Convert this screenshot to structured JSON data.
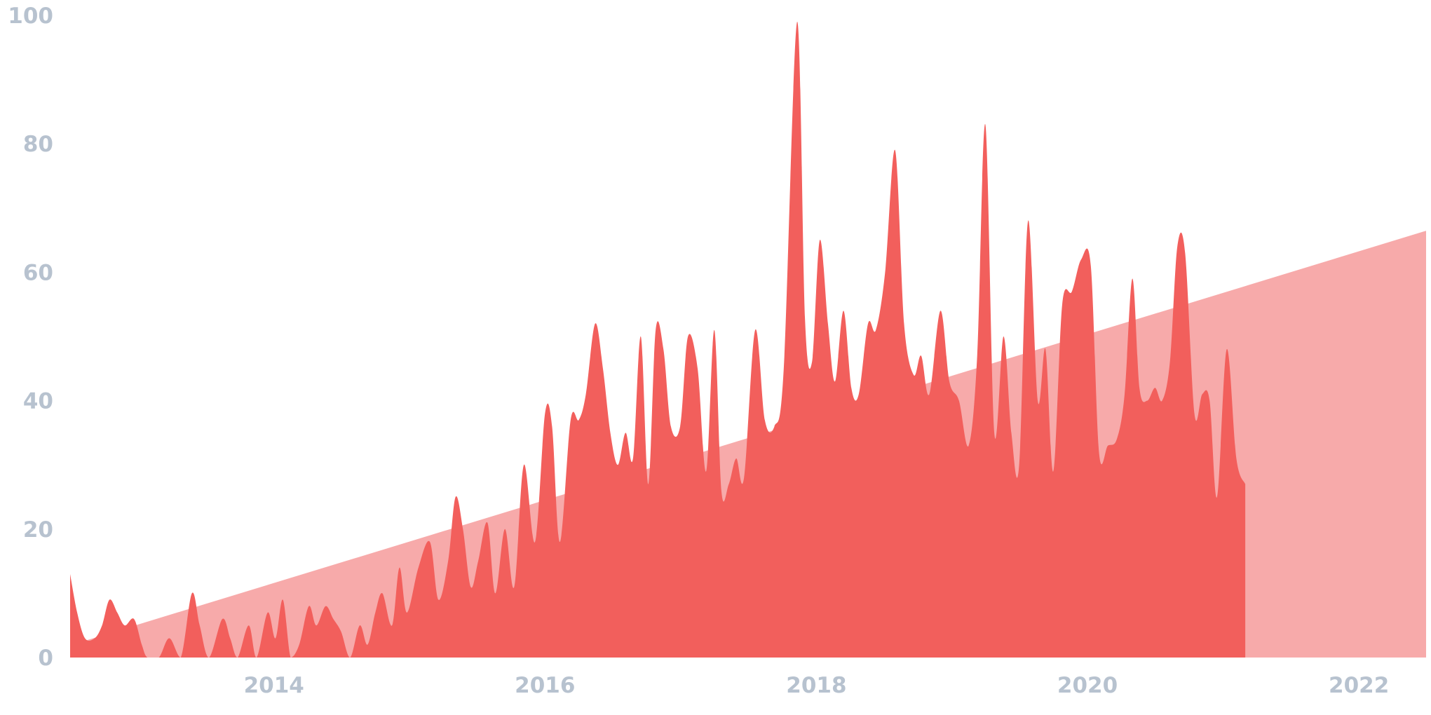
{
  "chart_data": {
    "type": "area",
    "title": "",
    "xlabel": "",
    "ylabel": "",
    "xlim": [
      "2012-07-01",
      "2022-07-01"
    ],
    "ylim": [
      0,
      100
    ],
    "grid": false,
    "legend": "none",
    "y_ticks": [
      "0",
      "20",
      "40",
      "60",
      "80",
      "100"
    ],
    "y_tick_values": [
      0,
      20,
      40,
      60,
      80,
      100
    ],
    "x_ticks": [
      "2014",
      "2016",
      "2018",
      "2020",
      "2022"
    ],
    "x_tick_dates": [
      "2014-01-01",
      "2016-01-01",
      "2018-01-01",
      "2020-01-01",
      "2022-01-01"
    ],
    "colors": {
      "main": "#f25f5c",
      "trend": "#f7aaaa",
      "tick_text": "#b7c2cf"
    },
    "series": [
      {
        "role": "interest",
        "points": [
          {
            "x": "2012-07-01",
            "y": 13
          },
          {
            "x": "2012-07-20",
            "y": 7
          },
          {
            "x": "2012-08-10",
            "y": 3
          },
          {
            "x": "2012-09-05",
            "y": 3
          },
          {
            "x": "2012-09-25",
            "y": 5
          },
          {
            "x": "2012-10-15",
            "y": 9
          },
          {
            "x": "2012-11-05",
            "y": 7
          },
          {
            "x": "2012-11-25",
            "y": 5
          },
          {
            "x": "2012-12-20",
            "y": 6
          },
          {
            "x": "2013-01-10",
            "y": 2
          },
          {
            "x": "2013-01-25",
            "y": 0
          },
          {
            "x": "2013-02-25",
            "y": 0
          },
          {
            "x": "2013-03-25",
            "y": 3
          },
          {
            "x": "2013-04-25",
            "y": 0
          },
          {
            "x": "2013-05-25",
            "y": 10
          },
          {
            "x": "2013-06-15",
            "y": 5
          },
          {
            "x": "2013-07-10",
            "y": 0
          },
          {
            "x": "2013-08-15",
            "y": 6
          },
          {
            "x": "2013-09-05",
            "y": 3
          },
          {
            "x": "2013-09-25",
            "y": 0
          },
          {
            "x": "2013-10-25",
            "y": 5
          },
          {
            "x": "2013-11-15",
            "y": 0
          },
          {
            "x": "2013-12-15",
            "y": 7
          },
          {
            "x": "2014-01-05",
            "y": 3
          },
          {
            "x": "2014-01-25",
            "y": 9
          },
          {
            "x": "2014-02-15",
            "y": 0
          },
          {
            "x": "2014-03-10",
            "y": 2
          },
          {
            "x": "2014-04-05",
            "y": 8
          },
          {
            "x": "2014-04-25",
            "y": 5
          },
          {
            "x": "2014-05-20",
            "y": 8
          },
          {
            "x": "2014-06-10",
            "y": 6
          },
          {
            "x": "2014-07-01",
            "y": 4
          },
          {
            "x": "2014-07-25",
            "y": 0
          },
          {
            "x": "2014-08-20",
            "y": 5
          },
          {
            "x": "2014-09-10",
            "y": 2
          },
          {
            "x": "2014-10-01",
            "y": 7
          },
          {
            "x": "2014-10-20",
            "y": 10
          },
          {
            "x": "2014-11-15",
            "y": 5
          },
          {
            "x": "2014-12-05",
            "y": 14
          },
          {
            "x": "2014-12-25",
            "y": 7
          },
          {
            "x": "2015-01-25",
            "y": 14
          },
          {
            "x": "2015-02-25",
            "y": 18
          },
          {
            "x": "2015-03-20",
            "y": 9
          },
          {
            "x": "2015-04-15",
            "y": 15
          },
          {
            "x": "2015-05-05",
            "y": 25
          },
          {
            "x": "2015-05-25",
            "y": 20
          },
          {
            "x": "2015-06-15",
            "y": 11
          },
          {
            "x": "2015-07-05",
            "y": 15
          },
          {
            "x": "2015-07-30",
            "y": 21
          },
          {
            "x": "2015-08-20",
            "y": 10
          },
          {
            "x": "2015-09-15",
            "y": 20
          },
          {
            "x": "2015-10-10",
            "y": 11
          },
          {
            "x": "2015-11-05",
            "y": 30
          },
          {
            "x": "2015-12-05",
            "y": 18
          },
          {
            "x": "2016-01-01",
            "y": 38
          },
          {
            "x": "2016-01-20",
            "y": 36
          },
          {
            "x": "2016-02-10",
            "y": 18
          },
          {
            "x": "2016-03-10",
            "y": 37
          },
          {
            "x": "2016-04-01",
            "y": 37
          },
          {
            "x": "2016-04-20",
            "y": 41
          },
          {
            "x": "2016-05-15",
            "y": 52
          },
          {
            "x": "2016-06-05",
            "y": 45
          },
          {
            "x": "2016-06-25",
            "y": 35
          },
          {
            "x": "2016-07-15",
            "y": 30
          },
          {
            "x": "2016-08-05",
            "y": 35
          },
          {
            "x": "2016-08-25",
            "y": 31
          },
          {
            "x": "2016-09-15",
            "y": 50
          },
          {
            "x": "2016-10-05",
            "y": 27
          },
          {
            "x": "2016-10-25",
            "y": 51
          },
          {
            "x": "2016-11-15",
            "y": 48
          },
          {
            "x": "2016-12-05",
            "y": 36
          },
          {
            "x": "2016-12-30",
            "y": 36
          },
          {
            "x": "2017-01-20",
            "y": 50
          },
          {
            "x": "2017-02-15",
            "y": 45
          },
          {
            "x": "2017-03-10",
            "y": 29
          },
          {
            "x": "2017-04-01",
            "y": 51
          },
          {
            "x": "2017-04-20",
            "y": 26
          },
          {
            "x": "2017-05-10",
            "y": 27
          },
          {
            "x": "2017-05-30",
            "y": 31
          },
          {
            "x": "2017-06-20",
            "y": 28
          },
          {
            "x": "2017-07-20",
            "y": 51
          },
          {
            "x": "2017-08-15",
            "y": 37
          },
          {
            "x": "2017-09-10",
            "y": 36
          },
          {
            "x": "2017-10-05",
            "y": 45
          },
          {
            "x": "2017-11-10",
            "y": 99
          },
          {
            "x": "2017-12-01",
            "y": 53
          },
          {
            "x": "2017-12-20",
            "y": 46
          },
          {
            "x": "2018-01-10",
            "y": 65
          },
          {
            "x": "2018-02-01",
            "y": 52
          },
          {
            "x": "2018-02-20",
            "y": 43
          },
          {
            "x": "2018-03-15",
            "y": 54
          },
          {
            "x": "2018-04-05",
            "y": 42
          },
          {
            "x": "2018-04-25",
            "y": 41
          },
          {
            "x": "2018-05-20",
            "y": 52
          },
          {
            "x": "2018-06-10",
            "y": 51
          },
          {
            "x": "2018-07-05",
            "y": 60
          },
          {
            "x": "2018-08-01",
            "y": 79
          },
          {
            "x": "2018-08-25",
            "y": 52
          },
          {
            "x": "2018-09-20",
            "y": 44
          },
          {
            "x": "2018-10-10",
            "y": 47
          },
          {
            "x": "2018-11-01",
            "y": 41
          },
          {
            "x": "2018-12-01",
            "y": 54
          },
          {
            "x": "2018-12-25",
            "y": 43
          },
          {
            "x": "2019-01-20",
            "y": 40
          },
          {
            "x": "2019-02-15",
            "y": 33
          },
          {
            "x": "2019-03-10",
            "y": 47
          },
          {
            "x": "2019-04-01",
            "y": 83
          },
          {
            "x": "2019-04-25",
            "y": 35
          },
          {
            "x": "2019-05-20",
            "y": 50
          },
          {
            "x": "2019-06-10",
            "y": 35
          },
          {
            "x": "2019-07-01",
            "y": 30
          },
          {
            "x": "2019-07-25",
            "y": 68
          },
          {
            "x": "2019-08-20",
            "y": 40
          },
          {
            "x": "2019-09-10",
            "y": 48
          },
          {
            "x": "2019-10-01",
            "y": 29
          },
          {
            "x": "2019-10-25",
            "y": 55
          },
          {
            "x": "2019-11-20",
            "y": 57
          },
          {
            "x": "2019-12-15",
            "y": 62
          },
          {
            "x": "2020-01-10",
            "y": 61
          },
          {
            "x": "2020-02-01",
            "y": 32
          },
          {
            "x": "2020-02-25",
            "y": 33
          },
          {
            "x": "2020-03-20",
            "y": 34
          },
          {
            "x": "2020-04-10",
            "y": 41
          },
          {
            "x": "2020-05-01",
            "y": 59
          },
          {
            "x": "2020-05-20",
            "y": 42
          },
          {
            "x": "2020-06-10",
            "y": 40
          },
          {
            "x": "2020-07-01",
            "y": 42
          },
          {
            "x": "2020-07-20",
            "y": 40
          },
          {
            "x": "2020-08-10",
            "y": 46
          },
          {
            "x": "2020-08-30",
            "y": 64
          },
          {
            "x": "2020-09-20",
            "y": 63
          },
          {
            "x": "2020-10-15",
            "y": 38
          },
          {
            "x": "2020-11-05",
            "y": 41
          },
          {
            "x": "2020-11-25",
            "y": 40
          },
          {
            "x": "2020-12-15",
            "y": 25
          },
          {
            "x": "2021-01-10",
            "y": 48
          },
          {
            "x": "2021-02-05",
            "y": 31
          },
          {
            "x": "2021-03-01",
            "y": 27
          }
        ]
      }
    ]
  }
}
